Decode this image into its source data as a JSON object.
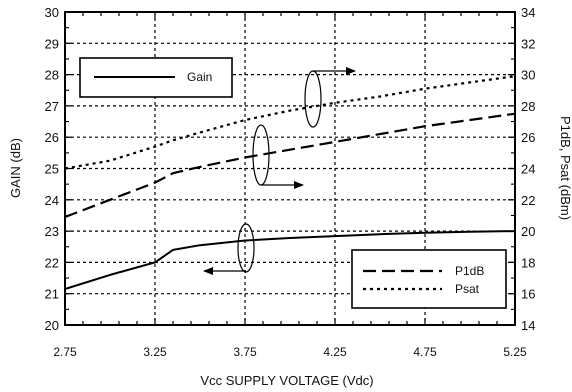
{
  "chart_data": {
    "type": "line",
    "xlabel": "Vcc SUPPLY VOLTAGE (Vdc)",
    "ylabel_left": "GAIN  (dB)",
    "ylabel_right": "P1dB, Psat (dBm)",
    "xlim": [
      2.75,
      5.25
    ],
    "ylim_left": [
      20,
      30
    ],
    "ylim_right": [
      14,
      34
    ],
    "x_ticks": [
      "2.75",
      "3.25",
      "3.75",
      "4.25",
      "4.75",
      "5.25"
    ],
    "y_ticks_left": [
      "20",
      "21",
      "22",
      "23",
      "24",
      "25",
      "26",
      "27",
      "28",
      "29",
      "30"
    ],
    "y_ticks_right": [
      "14",
      "16",
      "18",
      "20",
      "22",
      "24",
      "26",
      "28",
      "30",
      "32",
      "34"
    ],
    "grid": true,
    "series": [
      {
        "name": "Gain",
        "axis": "left",
        "style": "solid",
        "x": [
          2.75,
          3.0,
          3.25,
          3.35,
          3.5,
          3.75,
          4.0,
          4.25,
          4.5,
          4.75,
          5.0,
          5.25
        ],
        "y": [
          21.15,
          21.6,
          22.0,
          22.4,
          22.55,
          22.7,
          22.78,
          22.84,
          22.9,
          22.95,
          22.98,
          23.0
        ]
      },
      {
        "name": "P1dB",
        "axis": "right",
        "style": "dashed",
        "x": [
          2.75,
          3.0,
          3.25,
          3.35,
          3.5,
          3.75,
          4.0,
          4.25,
          4.5,
          4.75,
          5.0,
          5.25
        ],
        "y": [
          20.9,
          22.0,
          23.1,
          23.7,
          24.1,
          24.7,
          25.2,
          25.7,
          26.2,
          26.7,
          27.1,
          27.5
        ]
      },
      {
        "name": "Psat",
        "axis": "right",
        "style": "dotted",
        "x": [
          2.75,
          3.0,
          3.25,
          3.35,
          3.5,
          3.75,
          4.0,
          4.25,
          4.5,
          4.75,
          5.0,
          5.25
        ],
        "y": [
          24.0,
          24.5,
          25.4,
          25.8,
          26.3,
          27.1,
          27.7,
          28.2,
          28.6,
          29.1,
          29.5,
          29.9
        ]
      }
    ],
    "legends": [
      {
        "entries": [
          {
            "label": "Gain",
            "style": "solid"
          }
        ]
      },
      {
        "entries": [
          {
            "label": "P1dB",
            "style": "dashed"
          },
          {
            "label": "Psat",
            "style": "dotted"
          }
        ]
      }
    ]
  }
}
